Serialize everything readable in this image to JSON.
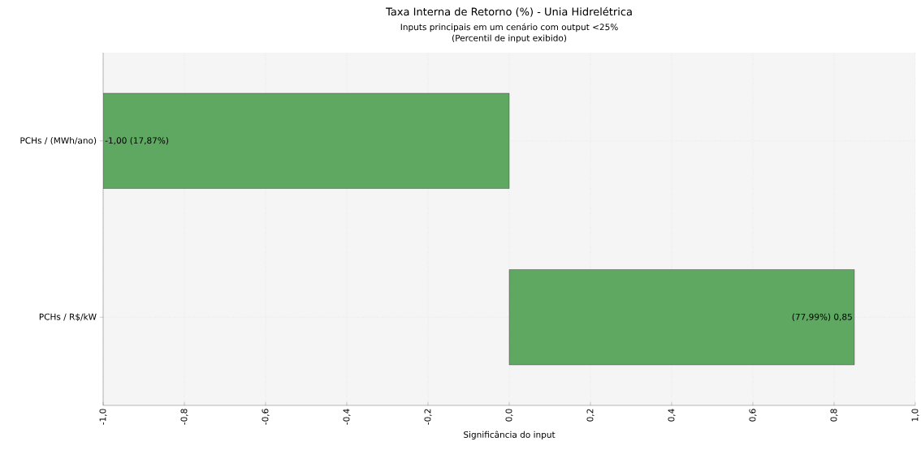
{
  "chart_data": {
    "type": "bar",
    "orientation": "horizontal",
    "title": "Taxa Interna de Retorno (%) - Unia Hidrelétrica",
    "subtitle": "Inputs principais em um cenário com output <25%",
    "annotations": [
      "(Percentil de input exibido)"
    ],
    "xlabel": "Significância do input",
    "categories": [
      "PCHs / (MWh/ano)",
      "PCHs / R$/kW"
    ],
    "values": [
      -1.0,
      0.85
    ],
    "value_labels": [
      "-1,00 (17,87%)",
      "(77,99%) 0,85"
    ],
    "color": "#5fa862",
    "xlim": [
      -1,
      1
    ],
    "xticks": [
      {
        "value": -1,
        "label": "-1,0"
      },
      {
        "value": -0.8,
        "label": "-0,8"
      },
      {
        "value": -0.6,
        "label": "-0,6"
      },
      {
        "value": -0.4,
        "label": "-0,4"
      },
      {
        "value": -0.2,
        "label": "-0,2"
      },
      {
        "value": 0,
        "label": "0,0"
      },
      {
        "value": 0.2,
        "label": "0,2"
      },
      {
        "value": 0.4,
        "label": "0,4"
      },
      {
        "value": 0.6,
        "label": "0,6"
      },
      {
        "value": 0.8,
        "label": "0,8"
      },
      {
        "value": 1,
        "label": "1,0"
      }
    ],
    "grid": true
  }
}
